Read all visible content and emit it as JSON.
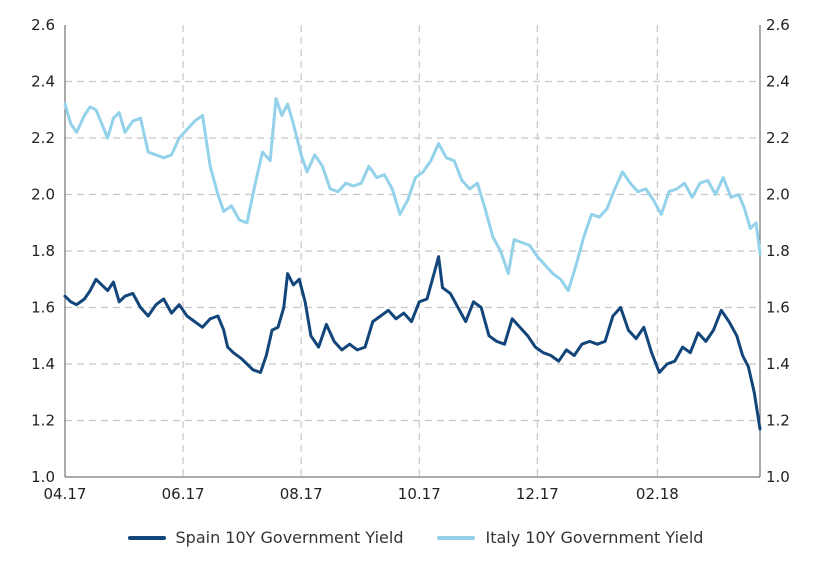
{
  "chart_data": {
    "type": "line",
    "title": "",
    "xlabel": "",
    "ylabel": "",
    "x_ticks": [
      "04.17",
      "06.17",
      "08.17",
      "10.17",
      "12.17",
      "02.18"
    ],
    "y_ticks": [
      "1.0",
      "1.2",
      "1.4",
      "1.6",
      "1.8",
      "2.0",
      "2.2",
      "2.4",
      "2.6"
    ],
    "ylim": [
      1.0,
      2.6
    ],
    "xlim": [
      "2017-04-01",
      "2018-03-26"
    ],
    "grid": true,
    "legend_position": "bottom",
    "series": [
      {
        "name": "Spain 10Y Government Yield",
        "color": "#12467a",
        "points": [
          [
            "2017-04-01",
            1.64
          ],
          [
            "2017-04-04",
            1.62
          ],
          [
            "2017-04-07",
            1.61
          ],
          [
            "2017-04-11",
            1.63
          ],
          [
            "2017-04-14",
            1.66
          ],
          [
            "2017-04-17",
            1.7
          ],
          [
            "2017-04-20",
            1.68
          ],
          [
            "2017-04-23",
            1.66
          ],
          [
            "2017-04-26",
            1.69
          ],
          [
            "2017-04-29",
            1.62
          ],
          [
            "2017-05-02",
            1.64
          ],
          [
            "2017-05-06",
            1.65
          ],
          [
            "2017-05-10",
            1.6
          ],
          [
            "2017-05-14",
            1.57
          ],
          [
            "2017-05-18",
            1.61
          ],
          [
            "2017-05-22",
            1.63
          ],
          [
            "2017-05-26",
            1.58
          ],
          [
            "2017-05-30",
            1.61
          ],
          [
            "2017-06-03",
            1.57
          ],
          [
            "2017-06-07",
            1.55
          ],
          [
            "2017-06-11",
            1.53
          ],
          [
            "2017-06-15",
            1.56
          ],
          [
            "2017-06-19",
            1.57
          ],
          [
            "2017-06-22",
            1.52
          ],
          [
            "2017-06-24",
            1.46
          ],
          [
            "2017-06-27",
            1.44
          ],
          [
            "2017-07-01",
            1.42
          ],
          [
            "2017-07-04",
            1.4
          ],
          [
            "2017-07-07",
            1.38
          ],
          [
            "2017-07-11",
            1.37
          ],
          [
            "2017-07-14",
            1.43
          ],
          [
            "2017-07-17",
            1.52
          ],
          [
            "2017-07-20",
            1.53
          ],
          [
            "2017-07-23",
            1.6
          ],
          [
            "2017-07-25",
            1.72
          ],
          [
            "2017-07-28",
            1.68
          ],
          [
            "2017-07-31",
            1.7
          ],
          [
            "2017-08-03",
            1.62
          ],
          [
            "2017-08-06",
            1.5
          ],
          [
            "2017-08-10",
            1.46
          ],
          [
            "2017-08-14",
            1.54
          ],
          [
            "2017-08-18",
            1.48
          ],
          [
            "2017-08-22",
            1.45
          ],
          [
            "2017-08-26",
            1.47
          ],
          [
            "2017-08-30",
            1.45
          ],
          [
            "2017-09-03",
            1.46
          ],
          [
            "2017-09-07",
            1.55
          ],
          [
            "2017-09-11",
            1.57
          ],
          [
            "2017-09-15",
            1.59
          ],
          [
            "2017-09-19",
            1.56
          ],
          [
            "2017-09-23",
            1.58
          ],
          [
            "2017-09-27",
            1.55
          ],
          [
            "2017-10-01",
            1.62
          ],
          [
            "2017-10-05",
            1.63
          ],
          [
            "2017-10-09",
            1.73
          ],
          [
            "2017-10-11",
            1.78
          ],
          [
            "2017-10-13",
            1.67
          ],
          [
            "2017-10-17",
            1.65
          ],
          [
            "2017-10-21",
            1.6
          ],
          [
            "2017-10-25",
            1.55
          ],
          [
            "2017-10-29",
            1.62
          ],
          [
            "2017-11-02",
            1.6
          ],
          [
            "2017-11-06",
            1.5
          ],
          [
            "2017-11-10",
            1.48
          ],
          [
            "2017-11-14",
            1.47
          ],
          [
            "2017-11-18",
            1.56
          ],
          [
            "2017-11-22",
            1.53
          ],
          [
            "2017-11-26",
            1.5
          ],
          [
            "2017-11-30",
            1.46
          ],
          [
            "2017-12-04",
            1.44
          ],
          [
            "2017-12-08",
            1.43
          ],
          [
            "2017-12-12",
            1.41
          ],
          [
            "2017-12-16",
            1.45
          ],
          [
            "2017-12-20",
            1.43
          ],
          [
            "2017-12-24",
            1.47
          ],
          [
            "2017-12-28",
            1.48
          ],
          [
            "2018-01-01",
            1.47
          ],
          [
            "2018-01-05",
            1.48
          ],
          [
            "2018-01-09",
            1.57
          ],
          [
            "2018-01-13",
            1.6
          ],
          [
            "2018-01-17",
            1.52
          ],
          [
            "2018-01-21",
            1.49
          ],
          [
            "2018-01-25",
            1.53
          ],
          [
            "2018-01-29",
            1.44
          ],
          [
            "2018-02-02",
            1.37
          ],
          [
            "2018-02-06",
            1.4
          ],
          [
            "2018-02-10",
            1.41
          ],
          [
            "2018-02-14",
            1.46
          ],
          [
            "2018-02-18",
            1.44
          ],
          [
            "2018-02-22",
            1.51
          ],
          [
            "2018-02-26",
            1.48
          ],
          [
            "2018-03-02",
            1.52
          ],
          [
            "2018-03-06",
            1.59
          ],
          [
            "2018-03-10",
            1.55
          ],
          [
            "2018-03-14",
            1.5
          ],
          [
            "2018-03-17",
            1.43
          ],
          [
            "2018-03-20",
            1.39
          ],
          [
            "2018-03-23",
            1.3
          ],
          [
            "2018-03-26",
            1.17
          ]
        ]
      },
      {
        "name": "Italy 10Y Government Yield",
        "color": "#93d2ea",
        "points": [
          [
            "2017-04-01",
            2.32
          ],
          [
            "2017-04-04",
            2.25
          ],
          [
            "2017-04-07",
            2.22
          ],
          [
            "2017-04-11",
            2.28
          ],
          [
            "2017-04-14",
            2.31
          ],
          [
            "2017-04-17",
            2.3
          ],
          [
            "2017-04-20",
            2.25
          ],
          [
            "2017-04-23",
            2.2
          ],
          [
            "2017-04-26",
            2.27
          ],
          [
            "2017-04-29",
            2.29
          ],
          [
            "2017-05-02",
            2.22
          ],
          [
            "2017-05-06",
            2.26
          ],
          [
            "2017-05-10",
            2.27
          ],
          [
            "2017-05-14",
            2.15
          ],
          [
            "2017-05-18",
            2.14
          ],
          [
            "2017-05-22",
            2.13
          ],
          [
            "2017-05-26",
            2.14
          ],
          [
            "2017-05-30",
            2.2
          ],
          [
            "2017-06-03",
            2.23
          ],
          [
            "2017-06-07",
            2.26
          ],
          [
            "2017-06-11",
            2.28
          ],
          [
            "2017-06-15",
            2.1
          ],
          [
            "2017-06-19",
            2.0
          ],
          [
            "2017-06-22",
            1.94
          ],
          [
            "2017-06-26",
            1.96
          ],
          [
            "2017-06-30",
            1.91
          ],
          [
            "2017-07-04",
            1.9
          ],
          [
            "2017-07-08",
            2.03
          ],
          [
            "2017-07-12",
            2.15
          ],
          [
            "2017-07-16",
            2.12
          ],
          [
            "2017-07-19",
            2.34
          ],
          [
            "2017-07-22",
            2.28
          ],
          [
            "2017-07-25",
            2.32
          ],
          [
            "2017-07-28",
            2.25
          ],
          [
            "2017-08-01",
            2.14
          ],
          [
            "2017-08-04",
            2.08
          ],
          [
            "2017-08-08",
            2.14
          ],
          [
            "2017-08-12",
            2.1
          ],
          [
            "2017-08-16",
            2.02
          ],
          [
            "2017-08-20",
            2.01
          ],
          [
            "2017-08-24",
            2.04
          ],
          [
            "2017-08-28",
            2.03
          ],
          [
            "2017-09-01",
            2.04
          ],
          [
            "2017-09-05",
            2.1
          ],
          [
            "2017-09-09",
            2.06
          ],
          [
            "2017-09-13",
            2.07
          ],
          [
            "2017-09-17",
            2.02
          ],
          [
            "2017-09-21",
            1.93
          ],
          [
            "2017-09-25",
            1.98
          ],
          [
            "2017-09-29",
            2.06
          ],
          [
            "2017-10-03",
            2.08
          ],
          [
            "2017-10-07",
            2.12
          ],
          [
            "2017-10-11",
            2.18
          ],
          [
            "2017-10-15",
            2.13
          ],
          [
            "2017-10-19",
            2.12
          ],
          [
            "2017-10-23",
            2.05
          ],
          [
            "2017-10-27",
            2.02
          ],
          [
            "2017-10-31",
            2.04
          ],
          [
            "2017-11-04",
            1.95
          ],
          [
            "2017-11-08",
            1.85
          ],
          [
            "2017-11-12",
            1.8
          ],
          [
            "2017-11-16",
            1.72
          ],
          [
            "2017-11-19",
            1.84
          ],
          [
            "2017-11-23",
            1.83
          ],
          [
            "2017-11-27",
            1.82
          ],
          [
            "2017-12-01",
            1.78
          ],
          [
            "2017-12-05",
            1.75
          ],
          [
            "2017-12-09",
            1.72
          ],
          [
            "2017-12-13",
            1.7
          ],
          [
            "2017-12-17",
            1.66
          ],
          [
            "2017-12-21",
            1.75
          ],
          [
            "2017-12-25",
            1.85
          ],
          [
            "2017-12-29",
            1.93
          ],
          [
            "2018-01-02",
            1.92
          ],
          [
            "2018-01-06",
            1.95
          ],
          [
            "2018-01-10",
            2.02
          ],
          [
            "2018-01-14",
            2.08
          ],
          [
            "2018-01-18",
            2.04
          ],
          [
            "2018-01-22",
            2.01
          ],
          [
            "2018-01-26",
            2.02
          ],
          [
            "2018-01-30",
            1.98
          ],
          [
            "2018-02-03",
            1.93
          ],
          [
            "2018-02-07",
            2.01
          ],
          [
            "2018-02-11",
            2.02
          ],
          [
            "2018-02-15",
            2.04
          ],
          [
            "2018-02-19",
            1.99
          ],
          [
            "2018-02-23",
            2.04
          ],
          [
            "2018-02-27",
            2.05
          ],
          [
            "2018-03-03",
            2.0
          ],
          [
            "2018-03-07",
            2.06
          ],
          [
            "2018-03-11",
            1.99
          ],
          [
            "2018-03-15",
            2.0
          ],
          [
            "2018-03-18",
            1.95
          ],
          [
            "2018-03-21",
            1.88
          ],
          [
            "2018-03-24",
            1.9
          ],
          [
            "2018-03-26",
            1.79
          ]
        ]
      }
    ]
  }
}
